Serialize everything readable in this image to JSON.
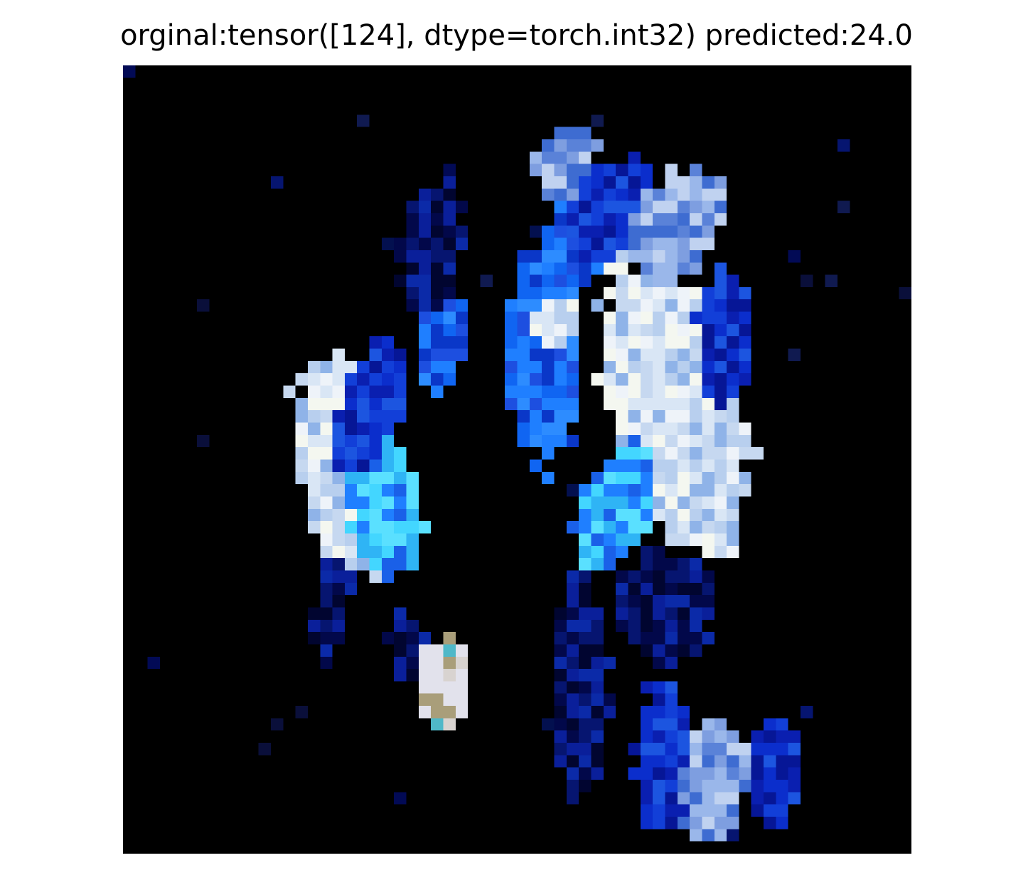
{
  "figure": {
    "title": "orginal:tensor([124], dtype=torch.int32) predicted:24.0"
  },
  "image": {
    "description_colors": {
      "background": "#000000",
      "deep_blue": "#0b1fb0",
      "bright_blue": "#1f7fff",
      "cyan": "#43d6ff",
      "pale_white": "#e8eef7"
    }
  }
}
